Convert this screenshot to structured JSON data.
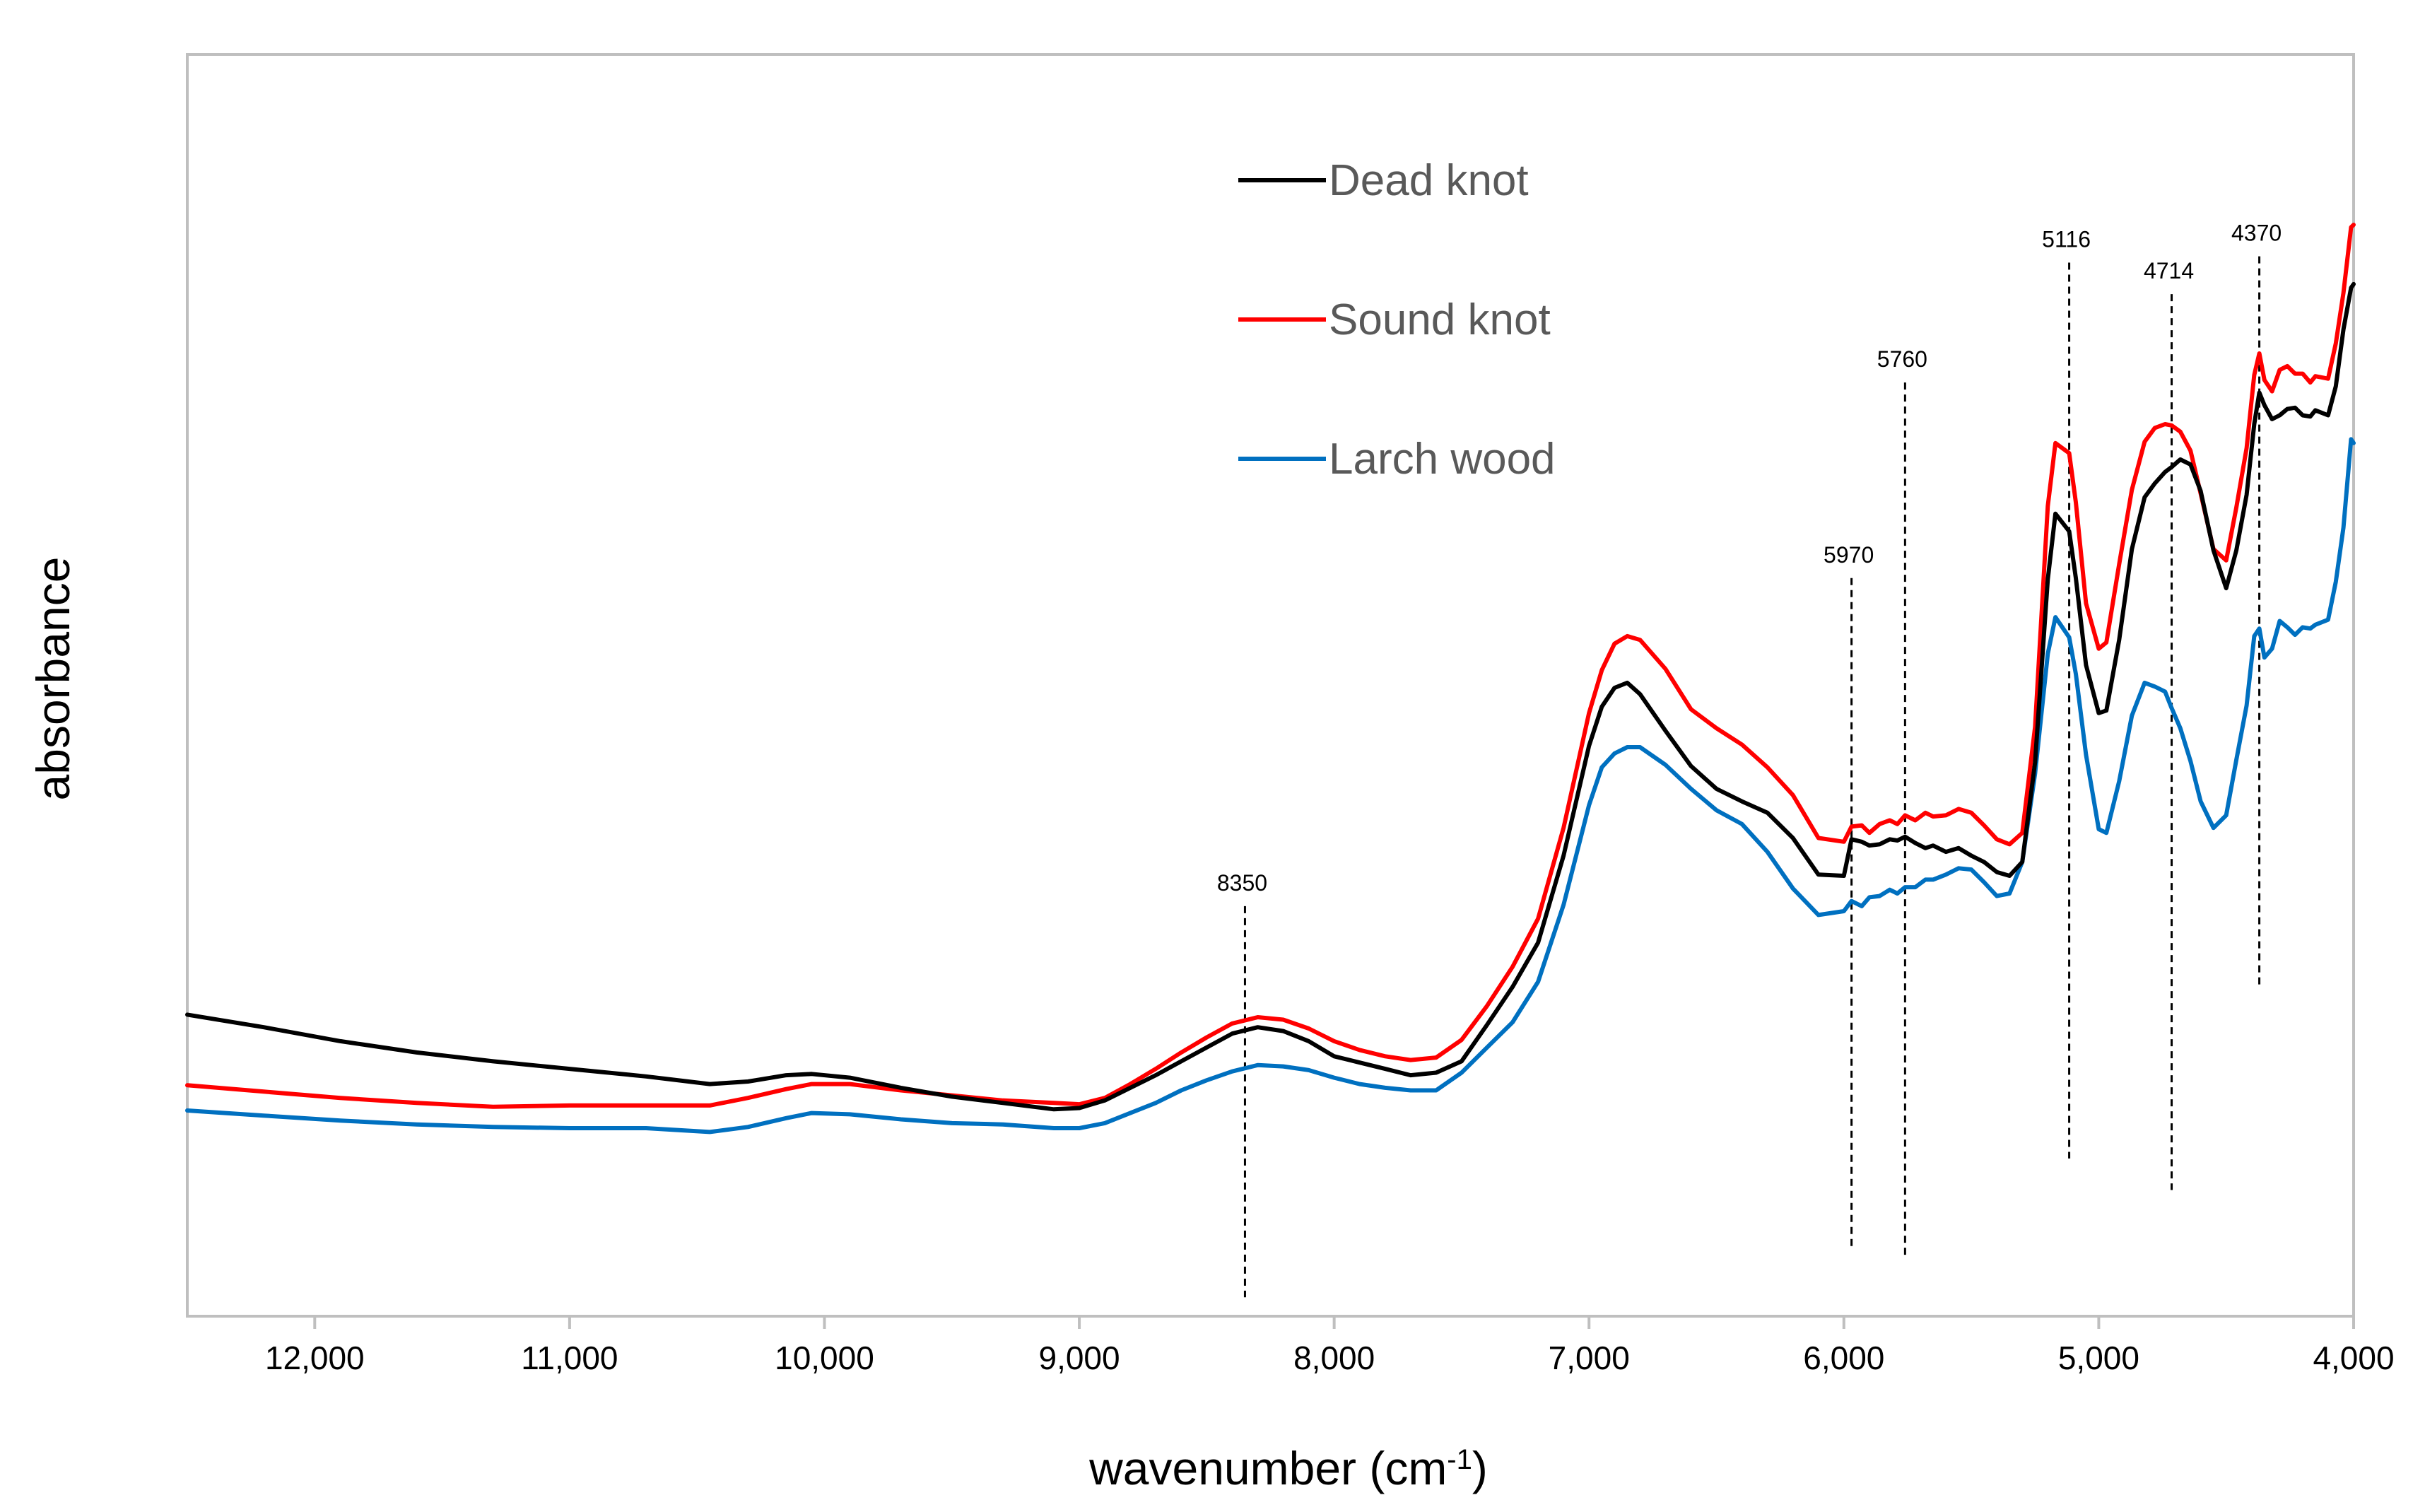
{
  "chart_data": {
    "type": "line",
    "title": "",
    "xlabel": "wavenumber (cm",
    "xlabel_superscript": "-1",
    "xlabel_close": ")",
    "ylabel": "absorbance",
    "xlim": [
      12500,
      4000
    ],
    "x_reversed": true,
    "ylim": [
      0,
      100
    ],
    "y_ticks_shown": false,
    "grid": false,
    "legend_position": "top-center",
    "x_ticks": [
      12000,
      11000,
      10000,
      9000,
      8000,
      7000,
      6000,
      5000,
      4000
    ],
    "x_tick_labels": [
      "12,000",
      "11,000",
      "10,000",
      "9,000",
      "8,000",
      "7,000",
      "6,000",
      "5,000",
      "4,000"
    ],
    "annotations": [
      {
        "x": 8350,
        "label": "8350",
        "y_top": 32.5,
        "y_bottom": 1.5
      },
      {
        "x": 5970,
        "label": "5970",
        "y_top": 58.5,
        "y_bottom": 5.5
      },
      {
        "x": 5760,
        "label": "5760",
        "y_top": 74.0,
        "y_bottom": 4.5
      },
      {
        "x": 5116,
        "label": "5116",
        "y_top": 83.5,
        "y_bottom": 12.5
      },
      {
        "x": 4714,
        "label": "4714",
        "y_top": 81.0,
        "y_bottom": 10.0
      },
      {
        "x": 4370,
        "label": "4370",
        "y_top": 84.0,
        "y_bottom": 26.0
      }
    ],
    "series": [
      {
        "name": "Dead knot",
        "color": "#000000",
        "x": [
          12500,
          12200,
          11900,
          11600,
          11300,
          11000,
          10700,
          10450,
          10300,
          10150,
          10050,
          9900,
          9700,
          9500,
          9300,
          9100,
          9000,
          8900,
          8800,
          8700,
          8600,
          8500,
          8400,
          8300,
          8200,
          8100,
          8000,
          7900,
          7800,
          7700,
          7600,
          7500,
          7400,
          7300,
          7200,
          7100,
          7000,
          6950,
          6900,
          6850,
          6800,
          6700,
          6600,
          6500,
          6400,
          6300,
          6200,
          6100,
          6000,
          5970,
          5930,
          5900,
          5860,
          5820,
          5790,
          5760,
          5720,
          5680,
          5650,
          5600,
          5550,
          5500,
          5450,
          5400,
          5350,
          5300,
          5250,
          5200,
          5170,
          5116,
          5090,
          5050,
          5000,
          4970,
          4920,
          4870,
          4820,
          4780,
          4740,
          4714,
          4680,
          4640,
          4600,
          4550,
          4500,
          4460,
          4420,
          4390,
          4370,
          4350,
          4320,
          4290,
          4260,
          4230,
          4200,
          4170,
          4150,
          4100,
          4070,
          4040,
          4010,
          4000
        ],
        "y": [
          23.9,
          22.9,
          21.8,
          20.9,
          20.2,
          19.6,
          19.0,
          18.4,
          18.6,
          19.1,
          19.2,
          18.9,
          18.1,
          17.4,
          16.9,
          16.4,
          16.5,
          17.1,
          18.1,
          19.1,
          20.2,
          21.3,
          22.4,
          22.9,
          22.6,
          21.8,
          20.6,
          20.1,
          19.6,
          19.1,
          19.3,
          20.2,
          23.1,
          26.1,
          29.6,
          36.5,
          45.2,
          48.3,
          49.8,
          50.2,
          49.3,
          46.4,
          43.6,
          41.8,
          40.8,
          39.9,
          37.9,
          35.0,
          34.9,
          37.8,
          37.6,
          37.3,
          37.4,
          37.8,
          37.7,
          38.0,
          37.5,
          37.1,
          37.3,
          36.8,
          37.1,
          36.5,
          36.0,
          35.2,
          34.9,
          36.0,
          43.9,
          58.4,
          63.6,
          62.2,
          58.5,
          51.6,
          47.8,
          48.0,
          53.6,
          60.8,
          64.9,
          66.0,
          66.9,
          67.3,
          67.9,
          67.5,
          65.4,
          60.7,
          57.7,
          60.7,
          65.1,
          70.7,
          73.2,
          72.2,
          71.1,
          71.4,
          71.9,
          72.0,
          71.4,
          71.3,
          71.8,
          71.4,
          73.7,
          78.2,
          81.5,
          81.8
        ]
      },
      {
        "name": "Sound knot",
        "color": "#ff0000",
        "x": [
          12500,
          12200,
          11900,
          11600,
          11300,
          11000,
          10700,
          10450,
          10300,
          10150,
          10050,
          9900,
          9700,
          9500,
          9300,
          9100,
          9000,
          8900,
          8800,
          8700,
          8600,
          8500,
          8400,
          8300,
          8200,
          8100,
          8000,
          7900,
          7800,
          7700,
          7600,
          7500,
          7400,
          7300,
          7200,
          7100,
          7000,
          6950,
          6900,
          6850,
          6800,
          6700,
          6600,
          6500,
          6400,
          6300,
          6200,
          6100,
          6000,
          5970,
          5930,
          5900,
          5860,
          5820,
          5790,
          5760,
          5720,
          5680,
          5650,
          5600,
          5550,
          5500,
          5450,
          5400,
          5350,
          5300,
          5250,
          5200,
          5170,
          5116,
          5090,
          5050,
          5000,
          4970,
          4920,
          4870,
          4820,
          4780,
          4740,
          4714,
          4680,
          4640,
          4600,
          4550,
          4500,
          4460,
          4420,
          4390,
          4370,
          4350,
          4320,
          4290,
          4260,
          4230,
          4200,
          4170,
          4150,
          4100,
          4070,
          4040,
          4010,
          4000
        ],
        "y": [
          18.3,
          17.8,
          17.3,
          16.9,
          16.6,
          16.7,
          16.7,
          16.7,
          17.3,
          18.0,
          18.4,
          18.4,
          17.9,
          17.5,
          17.1,
          16.9,
          16.8,
          17.3,
          18.4,
          19.6,
          20.9,
          22.1,
          23.2,
          23.7,
          23.5,
          22.8,
          21.8,
          21.1,
          20.6,
          20.3,
          20.5,
          21.9,
          24.6,
          27.7,
          31.5,
          38.7,
          47.8,
          51.2,
          53.3,
          53.9,
          53.6,
          51.3,
          48.1,
          46.6,
          45.3,
          43.5,
          41.3,
          37.9,
          37.6,
          38.8,
          38.9,
          38.3,
          39.0,
          39.3,
          39.0,
          39.7,
          39.3,
          39.9,
          39.6,
          39.7,
          40.2,
          39.9,
          38.9,
          37.8,
          37.4,
          38.3,
          46.7,
          64.2,
          69.2,
          68.4,
          64.5,
          56.5,
          52.9,
          53.4,
          59.6,
          65.5,
          69.3,
          70.4,
          70.7,
          70.6,
          70.1,
          68.6,
          65.2,
          60.8,
          59.9,
          64.1,
          68.8,
          74.6,
          76.3,
          74.2,
          73.3,
          75.0,
          75.3,
          74.7,
          74.7,
          74.0,
          74.5,
          74.3,
          77.1,
          81.1,
          86.3,
          86.5
        ]
      },
      {
        "name": "Larch wood",
        "color": "#0070c0",
        "x": [
          12500,
          12200,
          11900,
          11600,
          11300,
          11000,
          10700,
          10450,
          10300,
          10150,
          10050,
          9900,
          9700,
          9500,
          9300,
          9100,
          9000,
          8900,
          8800,
          8700,
          8600,
          8500,
          8400,
          8300,
          8200,
          8100,
          8000,
          7900,
          7800,
          7700,
          7600,
          7500,
          7400,
          7300,
          7200,
          7100,
          7000,
          6950,
          6900,
          6850,
          6800,
          6700,
          6600,
          6500,
          6400,
          6300,
          6200,
          6100,
          6000,
          5970,
          5930,
          5900,
          5860,
          5820,
          5790,
          5760,
          5720,
          5680,
          5650,
          5600,
          5550,
          5500,
          5450,
          5400,
          5350,
          5300,
          5250,
          5200,
          5170,
          5116,
          5090,
          5050,
          5000,
          4970,
          4920,
          4870,
          4820,
          4780,
          4740,
          4714,
          4680,
          4640,
          4600,
          4550,
          4500,
          4460,
          4420,
          4390,
          4370,
          4350,
          4320,
          4290,
          4260,
          4230,
          4200,
          4170,
          4150,
          4100,
          4070,
          4040,
          4010,
          4000
        ],
        "y": [
          16.3,
          15.9,
          15.5,
          15.2,
          15.0,
          14.9,
          14.9,
          14.6,
          15.0,
          15.7,
          16.1,
          16.0,
          15.6,
          15.3,
          15.2,
          14.9,
          14.9,
          15.3,
          16.1,
          16.9,
          17.9,
          18.7,
          19.4,
          19.9,
          19.8,
          19.5,
          18.9,
          18.4,
          18.1,
          17.9,
          17.9,
          19.3,
          21.3,
          23.3,
          26.5,
          32.6,
          40.5,
          43.5,
          44.6,
          45.1,
          45.1,
          43.7,
          41.8,
          40.1,
          39.0,
          36.8,
          33.9,
          31.8,
          32.1,
          32.9,
          32.5,
          33.2,
          33.3,
          33.8,
          33.5,
          34.0,
          34.0,
          34.6,
          34.6,
          35.0,
          35.5,
          35.4,
          34.4,
          33.3,
          33.5,
          36.0,
          43.0,
          52.5,
          55.4,
          53.8,
          50.9,
          44.5,
          38.6,
          38.3,
          42.4,
          47.6,
          50.2,
          49.9,
          49.5,
          48.2,
          46.6,
          44.0,
          40.8,
          38.7,
          39.7,
          44.1,
          48.4,
          53.9,
          54.5,
          52.2,
          52.9,
          55.1,
          54.6,
          54.0,
          54.6,
          54.5,
          54.8,
          55.2,
          58.2,
          62.5,
          69.5,
          69.2
        ]
      }
    ]
  }
}
